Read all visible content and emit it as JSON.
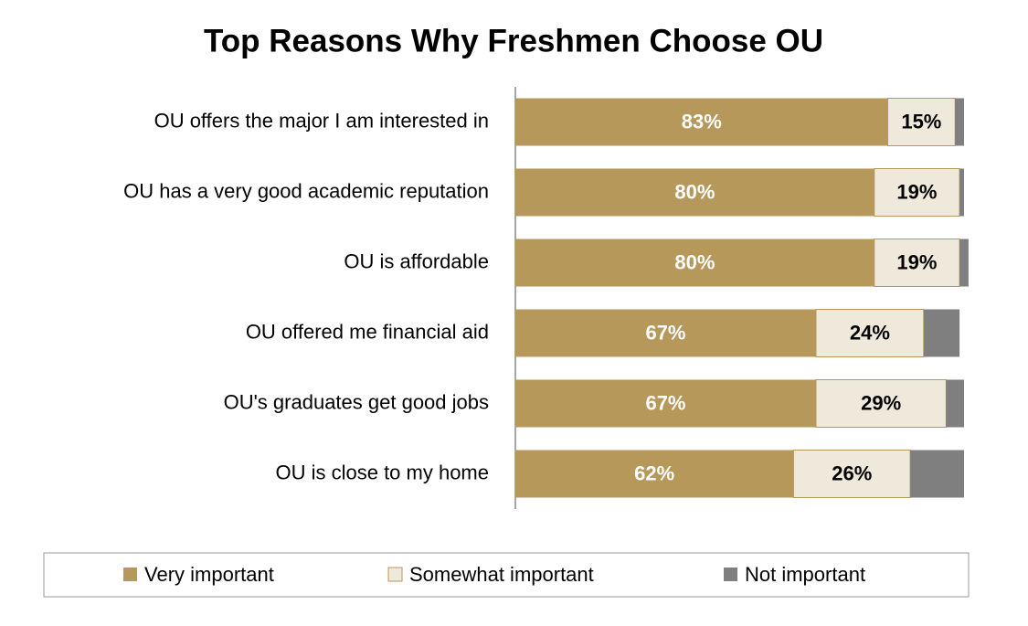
{
  "chart_data": {
    "type": "bar",
    "title": "Top Reasons Why Freshmen Choose OU",
    "categories": [
      "OU offers the major I am interested in",
      "OU has a very good academic reputation",
      "OU is affordable",
      "OU offered me financial aid",
      "OU's graduates get good jobs",
      "OU is close to my home"
    ],
    "xlim": [
      0,
      100
    ],
    "series": [
      {
        "name": "Very important",
        "color": "#b5985a",
        "values": [
          83,
          80,
          80,
          67,
          67,
          62
        ],
        "value_labels": [
          "83%",
          "80%",
          "80%",
          "67%",
          "67%",
          "62%"
        ]
      },
      {
        "name": "Somewhat important",
        "color": "#efe9dc",
        "values": [
          15,
          19,
          19,
          24,
          29,
          26
        ],
        "value_labels": [
          "15%",
          "19%",
          "19%",
          "24%",
          "29%",
          "26%"
        ]
      },
      {
        "name": "Not important",
        "color": "#7f7f7f",
        "values": [
          2,
          1,
          2,
          8,
          4,
          12
        ]
      }
    ]
  }
}
